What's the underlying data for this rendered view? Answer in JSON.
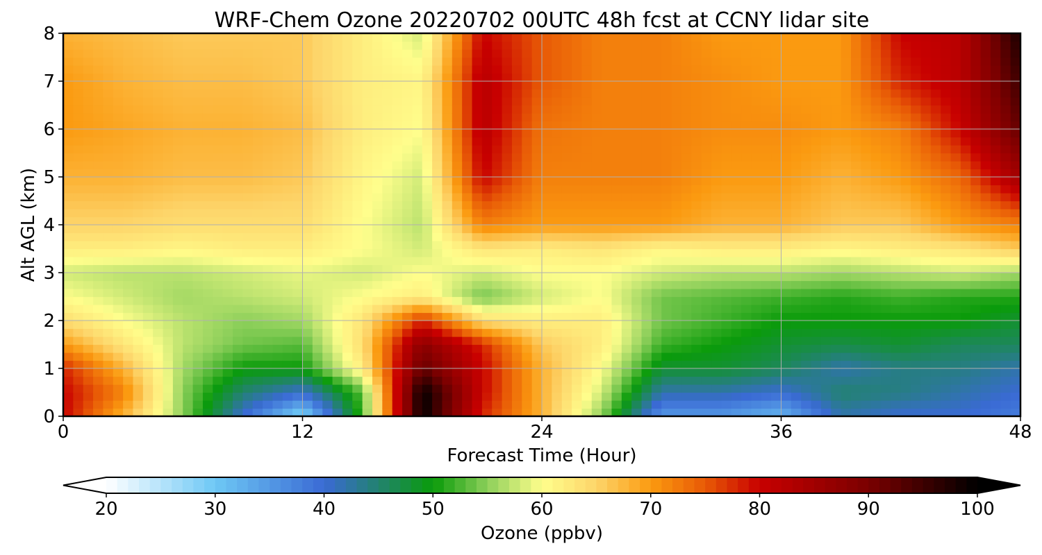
{
  "chart_data": {
    "type": "heatmap",
    "title": "WRF-Chem Ozone  20220702 00UTC 48h fcst at CCNY lidar site",
    "xlabel": "Forecast Time (Hour)",
    "ylabel": "Alt AGL (km)",
    "xlim": [
      0,
      48
    ],
    "ylim": [
      0,
      8
    ],
    "x_ticks": [
      "0",
      "12",
      "24",
      "36",
      "48"
    ],
    "y_ticks": [
      "0",
      "1",
      "2",
      "3",
      "4",
      "5",
      "6",
      "7",
      "8"
    ],
    "grid": true,
    "colorbar": {
      "label": "Ozone  (ppbv)",
      "range": [
        20,
        100
      ],
      "ticks": [
        "20",
        "30",
        "40",
        "50",
        "60",
        "70",
        "80",
        "90",
        "100"
      ],
      "extend": "both",
      "orientation": "horizontal",
      "color_stops": [
        {
          "value": 20,
          "color": "#ffffff"
        },
        {
          "value": 30,
          "color": "#6ec8f5"
        },
        {
          "value": 40,
          "color": "#3a6ad4"
        },
        {
          "value": 50,
          "color": "#0a9b0a"
        },
        {
          "value": 55,
          "color": "#8ccf5a"
        },
        {
          "value": 60,
          "color": "#fffe8c"
        },
        {
          "value": 65,
          "color": "#fdd56a"
        },
        {
          "value": 70,
          "color": "#fb9a10"
        },
        {
          "value": 75,
          "color": "#e85a06"
        },
        {
          "value": 80,
          "color": "#c80000"
        },
        {
          "value": 90,
          "color": "#7a0000"
        },
        {
          "value": 100,
          "color": "#000000"
        }
      ]
    },
    "x": [
      0,
      3,
      6,
      9,
      12,
      15,
      18,
      21,
      24,
      27,
      30,
      33,
      36,
      39,
      42,
      45,
      48
    ],
    "y": [
      0,
      0.5,
      1,
      1.5,
      2,
      2.5,
      3,
      3.5,
      4,
      5,
      6,
      7,
      8
    ],
    "z": [
      [
        80,
        68,
        55,
        40,
        28,
        52,
        100,
        78,
        68,
        55,
        35,
        35,
        32,
        42,
        40,
        40,
        38
      ],
      [
        80,
        72,
        55,
        45,
        40,
        53,
        100,
        80,
        68,
        58,
        42,
        42,
        40,
        45,
        44,
        42,
        40
      ],
      [
        78,
        68,
        56,
        50,
        50,
        62,
        92,
        80,
        68,
        60,
        48,
        48,
        46,
        42,
        44,
        44,
        42
      ],
      [
        70,
        63,
        57,
        54,
        53,
        64,
        88,
        78,
        66,
        62,
        52,
        50,
        48,
        47,
        48,
        46,
        46
      ],
      [
        64,
        60,
        57,
        55,
        56,
        63,
        78,
        64,
        62,
        62,
        54,
        52,
        50,
        50,
        50,
        50,
        48
      ],
      [
        60,
        58,
        56,
        57,
        58,
        60,
        62,
        54,
        58,
        60,
        54,
        53,
        52,
        51,
        52,
        51,
        51
      ],
      [
        58,
        57,
        57,
        58,
        59,
        58,
        60,
        58,
        60,
        60,
        58,
        57,
        57,
        56,
        57,
        58,
        56
      ],
      [
        62,
        62,
        61,
        62,
        62,
        60,
        58,
        63,
        62,
        63,
        61,
        62,
        62,
        61,
        62,
        63,
        66
      ],
      [
        65,
        65,
        64,
        64,
        64,
        60,
        57,
        72,
        70,
        70,
        70,
        68,
        68,
        66,
        66,
        70,
        72
      ],
      [
        68,
        68,
        67,
        67,
        66,
        61,
        58,
        80,
        72,
        72,
        72,
        70,
        70,
        68,
        70,
        74,
        85
      ],
      [
        70,
        69,
        68,
        68,
        67,
        62,
        60,
        82,
        73,
        72,
        72,
        71,
        71,
        70,
        72,
        80,
        92
      ],
      [
        70,
        68,
        67,
        67,
        66,
        62,
        61,
        82,
        75,
        72,
        72,
        71,
        70,
        70,
        78,
        82,
        95
      ],
      [
        68,
        67,
        66,
        66,
        66,
        62,
        58,
        80,
        75,
        72,
        72,
        70,
        70,
        70,
        80,
        82,
        98
      ]
    ]
  }
}
